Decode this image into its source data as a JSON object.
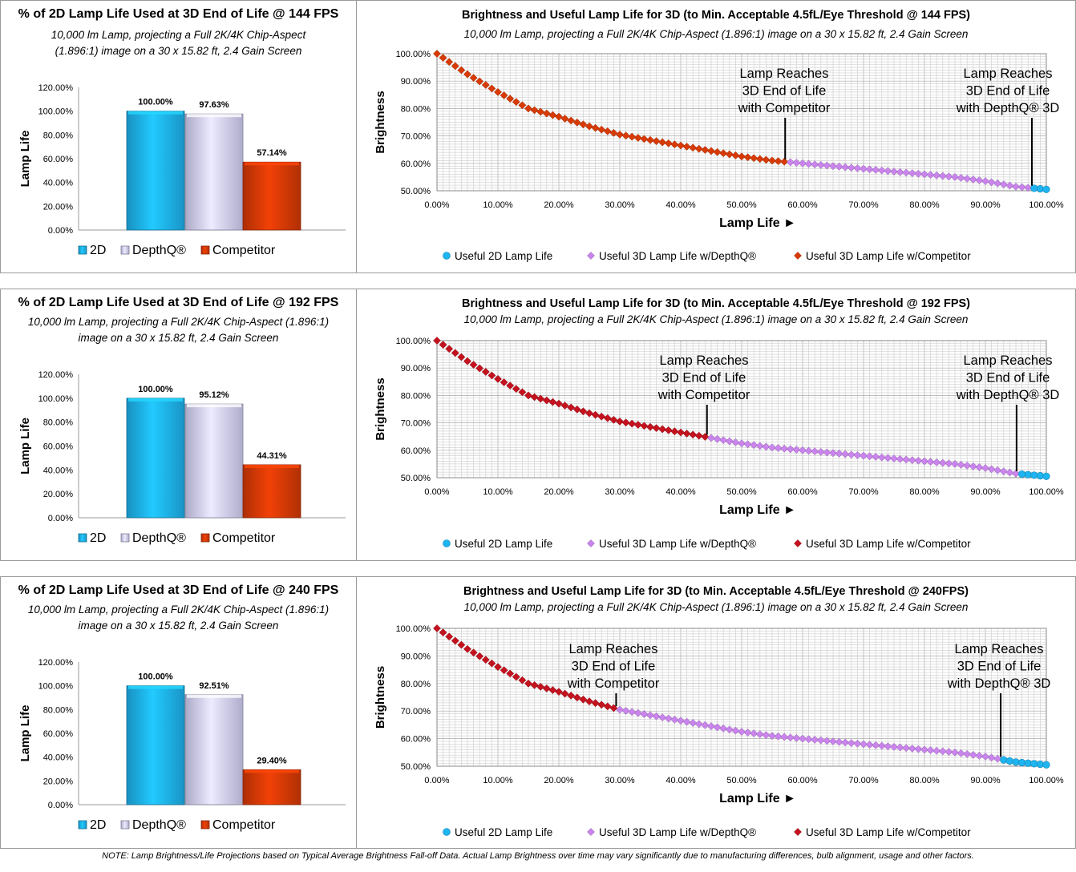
{
  "chart_data": [
    {
      "type": "bar",
      "title": "% of 2D Lamp Life Used at 3D End of Life @ 144 FPS",
      "subtitle_lines": [
        "10,000 lm Lamp, projecting a Full 2K/4K Chip-Aspect",
        "(1.896:1) image on a 30 x 15.82 ft, 2.4 Gain Screen"
      ],
      "ylabel": "Lamp Life",
      "categories": [
        "2D",
        "DepthQ®",
        "Competitor"
      ],
      "values": [
        100.0,
        97.63,
        57.14
      ],
      "value_labels": [
        "100.00%",
        "97.63%",
        "57.14%"
      ],
      "ylim": [
        0,
        120
      ],
      "yticks": [
        "0.00%",
        "20.00%",
        "40.00%",
        "60.00%",
        "80.00%",
        "100.00%",
        "120.00%"
      ],
      "legend": "bottom",
      "colors": [
        "#1eb4f0",
        "#d4d2f8",
        "#d83a06"
      ]
    },
    {
      "type": "scatter",
      "title": "Brightness and Useful Lamp Life for 3D (to Min. Acceptable 4.5fL/Eye Threshold @ 144 FPS)",
      "subtitle": "10,000 lm Lamp, projecting a Full 2K/4K Chip-Aspect (1.896:1) image on a 30 x 15.82 ft, 2.4 Gain Screen",
      "xlabel": "Lamp Life ►",
      "ylabel": "Brightness",
      "xlim": [
        0,
        100
      ],
      "ylim": [
        50,
        100
      ],
      "xticks": [
        "0.00%",
        "10.00%",
        "20.00%",
        "30.00%",
        "40.00%",
        "50.00%",
        "60.00%",
        "70.00%",
        "80.00%",
        "90.00%",
        "100.00%"
      ],
      "yticks": [
        "50.00%",
        "60.00%",
        "70.00%",
        "80.00%",
        "90.00%",
        "100.00%"
      ],
      "curve_x": [
        0,
        5,
        10,
        15,
        20,
        25,
        30,
        35,
        40,
        45,
        50,
        55,
        60,
        65,
        70,
        75,
        80,
        85,
        90,
        95,
        100
      ],
      "curve_y": [
        100,
        92.5,
        86,
        80,
        77,
        73.5,
        70.5,
        68.5,
        66.5,
        64.5,
        62.5,
        61,
        60,
        59,
        58,
        57,
        56,
        55,
        53.5,
        51.5,
        50.5
      ],
      "competitor_end": 57.14,
      "depthq_end": 97.63,
      "series": [
        {
          "name": "Useful 2D Lamp Life",
          "marker": "circle",
          "color": "#1eb4f0"
        },
        {
          "name": "Useful 3D Lamp Life w/DepthQ®",
          "marker": "diamond",
          "color": "#c985ec"
        },
        {
          "name": "Useful 3D Lamp Life w/Competitor",
          "marker": "diamond",
          "color": "#d83a06"
        }
      ],
      "annotations": [
        {
          "lines": [
            "Lamp Reaches",
            "3D End of Life",
            "with Competitor"
          ],
          "x": 57.14
        },
        {
          "lines": [
            "Lamp Reaches",
            "3D End of Life",
            "with DepthQ® 3D"
          ],
          "x": 97.63
        }
      ],
      "legend": "bottom"
    },
    {
      "type": "bar",
      "title": "% of 2D Lamp Life Used at 3D End of Life @ 192 FPS",
      "subtitle_lines": [
        "10,000 lm Lamp, projecting a Full 2K/4K Chip-Aspect (1.896:1)",
        "image on a 30 x 15.82 ft, 2.4 Gain Screen"
      ],
      "ylabel": "Lamp Life",
      "categories": [
        "2D",
        "DepthQ®",
        "Competitor"
      ],
      "values": [
        100.0,
        95.12,
        44.31
      ],
      "value_labels": [
        "100.00%",
        "95.12%",
        "44.31%"
      ],
      "ylim": [
        0,
        120
      ],
      "yticks": [
        "0.00%",
        "20.00%",
        "40.00%",
        "60.00%",
        "80.00%",
        "100.00%",
        "120.00%"
      ],
      "legend": "bottom",
      "colors": [
        "#1eb4f0",
        "#d4d2f8",
        "#d83a06"
      ]
    },
    {
      "type": "scatter",
      "title": "Brightness and Useful Lamp Life for 3D (to Min. Acceptable 4.5fL/Eye Threshold @ 192 FPS)",
      "subtitle": "10,000 lm Lamp, projecting a Full 2K/4K Chip-Aspect (1.896:1) image on a 30 x 15.82 ft, 2.4 Gain Screen",
      "xlabel": "Lamp Life ►",
      "ylabel": "Brightness",
      "xlim": [
        0,
        100
      ],
      "ylim": [
        50,
        100
      ],
      "xticks": [
        "0.00%",
        "10.00%",
        "20.00%",
        "30.00%",
        "40.00%",
        "50.00%",
        "60.00%",
        "70.00%",
        "80.00%",
        "90.00%",
        "100.00%"
      ],
      "yticks": [
        "50.00%",
        "60.00%",
        "70.00%",
        "80.00%",
        "90.00%",
        "100.00%"
      ],
      "curve_x": [
        0,
        5,
        10,
        15,
        20,
        25,
        30,
        35,
        40,
        45,
        50,
        55,
        60,
        65,
        70,
        75,
        80,
        85,
        90,
        95,
        100
      ],
      "curve_y": [
        100,
        92.5,
        86,
        80,
        77,
        73.5,
        70.5,
        68.5,
        66.5,
        64.5,
        62.5,
        61,
        60,
        59,
        58,
        57,
        56,
        55,
        53.5,
        51.5,
        50.5
      ],
      "competitor_end": 44.31,
      "depthq_end": 95.12,
      "series": [
        {
          "name": "Useful 2D Lamp Life",
          "marker": "circle",
          "color": "#1eb4f0"
        },
        {
          "name": "Useful 3D Lamp Life w/DepthQ®",
          "marker": "diamond",
          "color": "#c985ec"
        },
        {
          "name": "Useful 3D Lamp Life w/Competitor",
          "marker": "diamond",
          "color": "#c4121e"
        }
      ],
      "annotations": [
        {
          "lines": [
            "Lamp Reaches",
            "3D End of Life",
            "with Competitor"
          ],
          "x": 44.31
        },
        {
          "lines": [
            "Lamp Reaches",
            "3D End of Life",
            "with DepthQ® 3D"
          ],
          "x": 95.12
        }
      ],
      "legend": "bottom"
    },
    {
      "type": "bar",
      "title": "% of 2D Lamp Life Used at 3D End of Life @ 240 FPS",
      "subtitle_lines": [
        "10,000 lm Lamp, projecting a Full 2K/4K Chip-Aspect (1.896:1)",
        "image on a 30 x 15.82 ft, 2.4 Gain Screen"
      ],
      "ylabel": "Lamp Life",
      "categories": [
        "2D",
        "DepthQ®",
        "Competitor"
      ],
      "values": [
        100.0,
        92.51,
        29.4
      ],
      "value_labels": [
        "100.00%",
        "92.51%",
        "29.40%"
      ],
      "ylim": [
        0,
        120
      ],
      "yticks": [
        "0.00%",
        "20.00%",
        "40.00%",
        "60.00%",
        "80.00%",
        "100.00%",
        "120.00%"
      ],
      "legend": "bottom",
      "colors": [
        "#1eb4f0",
        "#d4d2f8",
        "#d83a06"
      ]
    },
    {
      "type": "scatter",
      "title": "Brightness and Useful Lamp Life for 3D (to Min. Acceptable 4.5fL/Eye Threshold @ 240FPS)",
      "subtitle": "10,000 lm Lamp, projecting a Full 2K/4K Chip-Aspect (1.896:1) image on a 30 x 15.82 ft, 2.4 Gain Screen",
      "xlabel": "Lamp Life ►",
      "ylabel": "Brightness",
      "xlim": [
        0,
        100
      ],
      "ylim": [
        50,
        100
      ],
      "xticks": [
        "0.00%",
        "10.00%",
        "20.00%",
        "30.00%",
        "40.00%",
        "50.00%",
        "60.00%",
        "70.00%",
        "80.00%",
        "90.00%",
        "100.00%"
      ],
      "yticks": [
        "50.00%",
        "60.00%",
        "70.00%",
        "80.00%",
        "90.00%",
        "100.00%"
      ],
      "curve_x": [
        0,
        5,
        10,
        15,
        20,
        25,
        30,
        35,
        40,
        45,
        50,
        55,
        60,
        65,
        70,
        75,
        80,
        85,
        90,
        95,
        100
      ],
      "curve_y": [
        100,
        92.5,
        86,
        80,
        77,
        73.5,
        70.5,
        68.5,
        66.5,
        64.5,
        62.5,
        61,
        60,
        59,
        58,
        57,
        56,
        55,
        53.5,
        51.5,
        50.5
      ],
      "competitor_end": 29.4,
      "depthq_end": 92.51,
      "series": [
        {
          "name": "Useful 2D Lamp Life",
          "marker": "circle",
          "color": "#1eb4f0"
        },
        {
          "name": "Useful 3D Lamp Life w/DepthQ®",
          "marker": "diamond",
          "color": "#c985ec"
        },
        {
          "name": "Useful 3D Lamp Life w/Competitor",
          "marker": "diamond",
          "color": "#c4121e"
        }
      ],
      "annotations": [
        {
          "lines": [
            "Lamp Reaches",
            "3D End of Life",
            "with Competitor"
          ],
          "x": 29.4
        },
        {
          "lines": [
            "Lamp Reaches",
            "3D End of Life",
            "with DepthQ® 3D"
          ],
          "x": 92.51
        }
      ],
      "legend": "bottom"
    }
  ],
  "note": "NOTE: Lamp Brightness/Life Projections based on Typical Average Brightness Fall-off Data.  Actual Lamp Brightness over time may vary significantly due to manufacturing differences, bulb alignment, usage and other factors."
}
